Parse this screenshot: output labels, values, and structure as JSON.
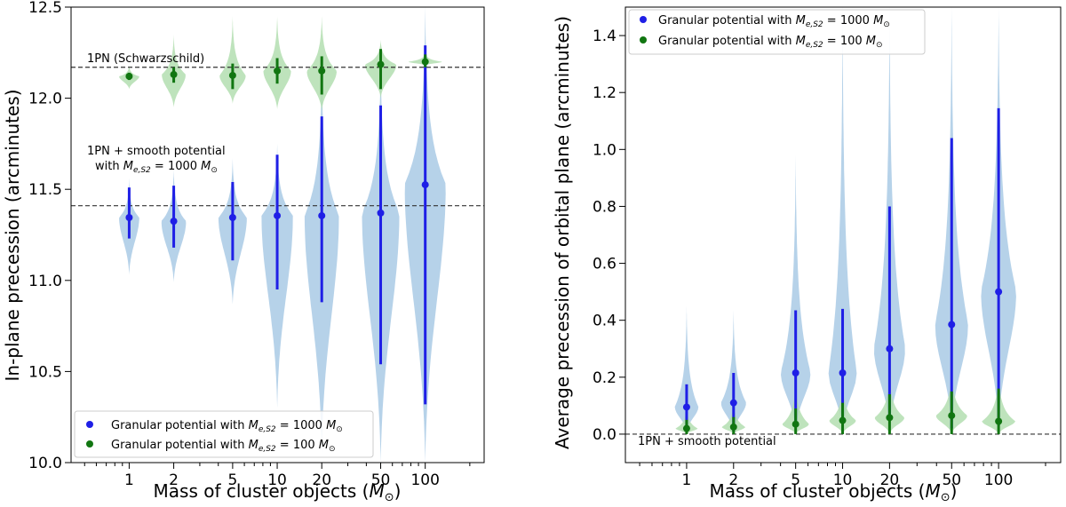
{
  "chart_data": [
    {
      "type": "violin",
      "xscale": "log",
      "xlabel": "Mass of cluster objects (M_☉)",
      "xlabel_main": "Mass of cluster objects (",
      "xlabel_sym": "M",
      "xlabel_sub": "⊙",
      "xlabel_end": ")",
      "ylabel": "In-plane precession (arcminutes)",
      "ylim": [
        10.0,
        12.5
      ],
      "yticks": [
        "10.0",
        "10.5",
        "11.0",
        "11.5",
        "12.0",
        "12.5"
      ],
      "xticks": [
        "1",
        "2",
        "5",
        "10",
        "20",
        "50",
        "100"
      ],
      "x": [
        1,
        2,
        5,
        10,
        20,
        50,
        100
      ],
      "reference_lines": [
        {
          "y": 12.17,
          "label": "1PN (Schwarzschild)"
        },
        {
          "y": 11.41,
          "label_line1": "1PN + smooth potential",
          "label_line2": "with M_e,S2 = 1000 M_☉"
        }
      ],
      "ann_line2_pre": "with ",
      "ann_line2_sym": "M",
      "ann_line2_sub": "e,S2",
      "ann_line2_eq": " = 1000 ",
      "ann_line2_msun": "M",
      "ann_line2_msub": "⊙",
      "legend_position": "lower-left",
      "series": [
        {
          "name": "Granular potential with M_e,S2 = 1000 M_☉",
          "legend_pre": "Granular potential with ",
          "legend_num": "1000",
          "color": "#1f1fe6",
          "fill": "#a9cae5",
          "median": [
            11.345,
            11.325,
            11.345,
            11.355,
            11.355,
            11.37,
            11.525
          ],
          "whisker_low": [
            11.23,
            11.18,
            11.11,
            10.95,
            10.88,
            10.54,
            10.32
          ],
          "whisker_high": [
            11.51,
            11.52,
            11.54,
            11.69,
            11.9,
            11.96,
            12.29
          ],
          "extent_low": [
            11.03,
            10.99,
            10.87,
            10.3,
            10.05,
            10.0,
            10.0
          ],
          "extent_high": [
            11.56,
            11.61,
            11.67,
            11.75,
            12.17,
            12.2,
            12.5
          ],
          "widths": [
            0.27,
            0.33,
            0.38,
            0.42,
            0.46,
            0.5,
            0.55
          ]
        },
        {
          "name": "Granular potential with M_e,S2 = 100 M_☉",
          "legend_pre": "Granular potential with ",
          "legend_num": "100",
          "color": "#117611",
          "fill": "#b3deb0",
          "median": [
            12.12,
            12.13,
            12.125,
            12.15,
            12.15,
            12.185,
            12.2
          ],
          "whisker_low": [
            12.1,
            12.085,
            12.05,
            12.08,
            12.02,
            12.05,
            12.17
          ],
          "whisker_high": [
            12.14,
            12.17,
            12.19,
            12.22,
            12.23,
            12.27,
            12.24
          ],
          "extent_low": [
            12.05,
            11.95,
            11.97,
            11.94,
            11.93,
            12.0,
            12.18
          ],
          "extent_high": [
            12.18,
            12.35,
            12.45,
            12.45,
            12.45,
            12.32,
            12.25
          ],
          "widths": [
            0.27,
            0.32,
            0.35,
            0.37,
            0.4,
            0.42,
            0.45
          ]
        }
      ]
    },
    {
      "type": "violin",
      "xscale": "log",
      "xlabel": "Mass of cluster objects (M_☉)",
      "xlabel_main": "Mass of cluster objects (",
      "xlabel_sym": "M",
      "xlabel_sub": "⊙",
      "xlabel_end": ")",
      "ylabel": "Average precession of orbital plane (arcminutes)",
      "ylim": [
        -0.1,
        1.5
      ],
      "yticks": [
        "0.0",
        "0.2",
        "0.4",
        "0.6",
        "0.8",
        "1.0",
        "1.2",
        "1.4"
      ],
      "xticks": [
        "1",
        "2",
        "5",
        "10",
        "20",
        "50",
        "100"
      ],
      "x": [
        1,
        2,
        5,
        10,
        20,
        50,
        100
      ],
      "reference_lines": [
        {
          "y": 0.0,
          "label": "1PN + smooth potential"
        }
      ],
      "legend_position": "upper-left",
      "series": [
        {
          "name": "Granular potential with M_e,S2 = 1000 M_☉",
          "legend_pre": "Granular potential with ",
          "legend_num": "1000",
          "color": "#1f1fe6",
          "fill": "#a9cae5",
          "median": [
            0.095,
            0.11,
            0.215,
            0.215,
            0.3,
            0.385,
            0.5
          ],
          "whisker_low": [
            0.01,
            0.01,
            0.03,
            0.05,
            0.05,
            0.02,
            0.03
          ],
          "whisker_high": [
            0.175,
            0.215,
            0.435,
            0.44,
            0.8,
            1.04,
            1.145
          ],
          "extent_low": [
            0.005,
            0.005,
            0.01,
            0.01,
            0.01,
            0.01,
            0.01
          ],
          "extent_high": [
            0.45,
            0.435,
            0.98,
            1.5,
            1.5,
            1.5,
            1.5
          ],
          "widths": [
            0.3,
            0.32,
            0.38,
            0.36,
            0.4,
            0.42,
            0.45
          ]
        },
        {
          "name": "Granular potential with M_e,S2 = 100 M_☉",
          "legend_pre": "Granular potential with ",
          "legend_num": "100",
          "color": "#117611",
          "fill": "#b3deb0",
          "median": [
            0.02,
            0.025,
            0.035,
            0.048,
            0.058,
            0.065,
            0.045
          ],
          "whisker_low": [
            0.0,
            0.0,
            0.0,
            0.0,
            0.0,
            0.0,
            0.0
          ],
          "whisker_high": [
            0.05,
            0.06,
            0.09,
            0.11,
            0.14,
            0.15,
            0.16
          ],
          "extent_low": [
            0.0,
            0.0,
            0.0,
            0.0,
            0.0,
            0.0,
            0.0
          ],
          "extent_high": [
            0.1,
            0.12,
            0.2,
            0.19,
            0.22,
            0.23,
            0.22
          ],
          "widths": [
            0.28,
            0.3,
            0.34,
            0.34,
            0.38,
            0.4,
            0.42
          ]
        }
      ]
    }
  ]
}
